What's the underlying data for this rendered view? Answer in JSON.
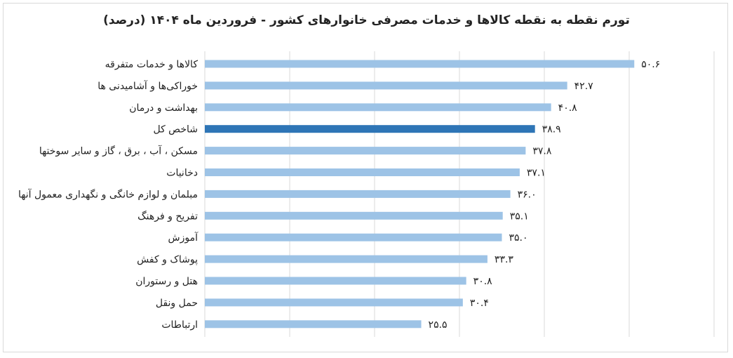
{
  "chart_data": {
    "type": "bar",
    "orientation": "horizontal",
    "title": "تورم نقطه به نقطه کالاها و خدمات مصرفی خانوارهای کشور - فروردین ماه ۱۴۰۴ (درصد)",
    "xlim": [
      0,
      60
    ],
    "grid": true,
    "categories": [
      "کالاها و خدمات متفرقه",
      "خوراکی‌ها و آشامیدنی ها",
      "بهداشت و درمان",
      "شاخص کل",
      "مسکن ، آب ، برق ، گاز و سایر سوختها",
      "دخانیات",
      "مبلمان و لوازم خانگی و نگهداری معمول آنها",
      "تفریح و فرهنگ",
      "آموزش",
      "پوشاک و کفش",
      "هتل و رستوران",
      "حمل ونقل",
      "ارتباطات"
    ],
    "values": [
      50.6,
      42.7,
      40.8,
      38.9,
      37.8,
      37.1,
      36.0,
      35.1,
      35.0,
      33.3,
      30.8,
      30.4,
      25.5
    ],
    "value_labels": [
      "۵۰.۶",
      "۴۲.۷",
      "۴۰.۸",
      "۳۸.۹",
      "۳۷.۸",
      "۳۷.۱",
      "۳۶.۰",
      "۳۵.۱",
      "۳۵.۰",
      "۳۳.۳",
      "۳۰.۸",
      "۳۰.۴",
      "۲۵.۵"
    ],
    "highlight_index": 3,
    "colors": {
      "bar": "#9dc3e6",
      "highlight": "#2e75b6",
      "grid": "#d9d9d9",
      "text": "#222222"
    }
  }
}
